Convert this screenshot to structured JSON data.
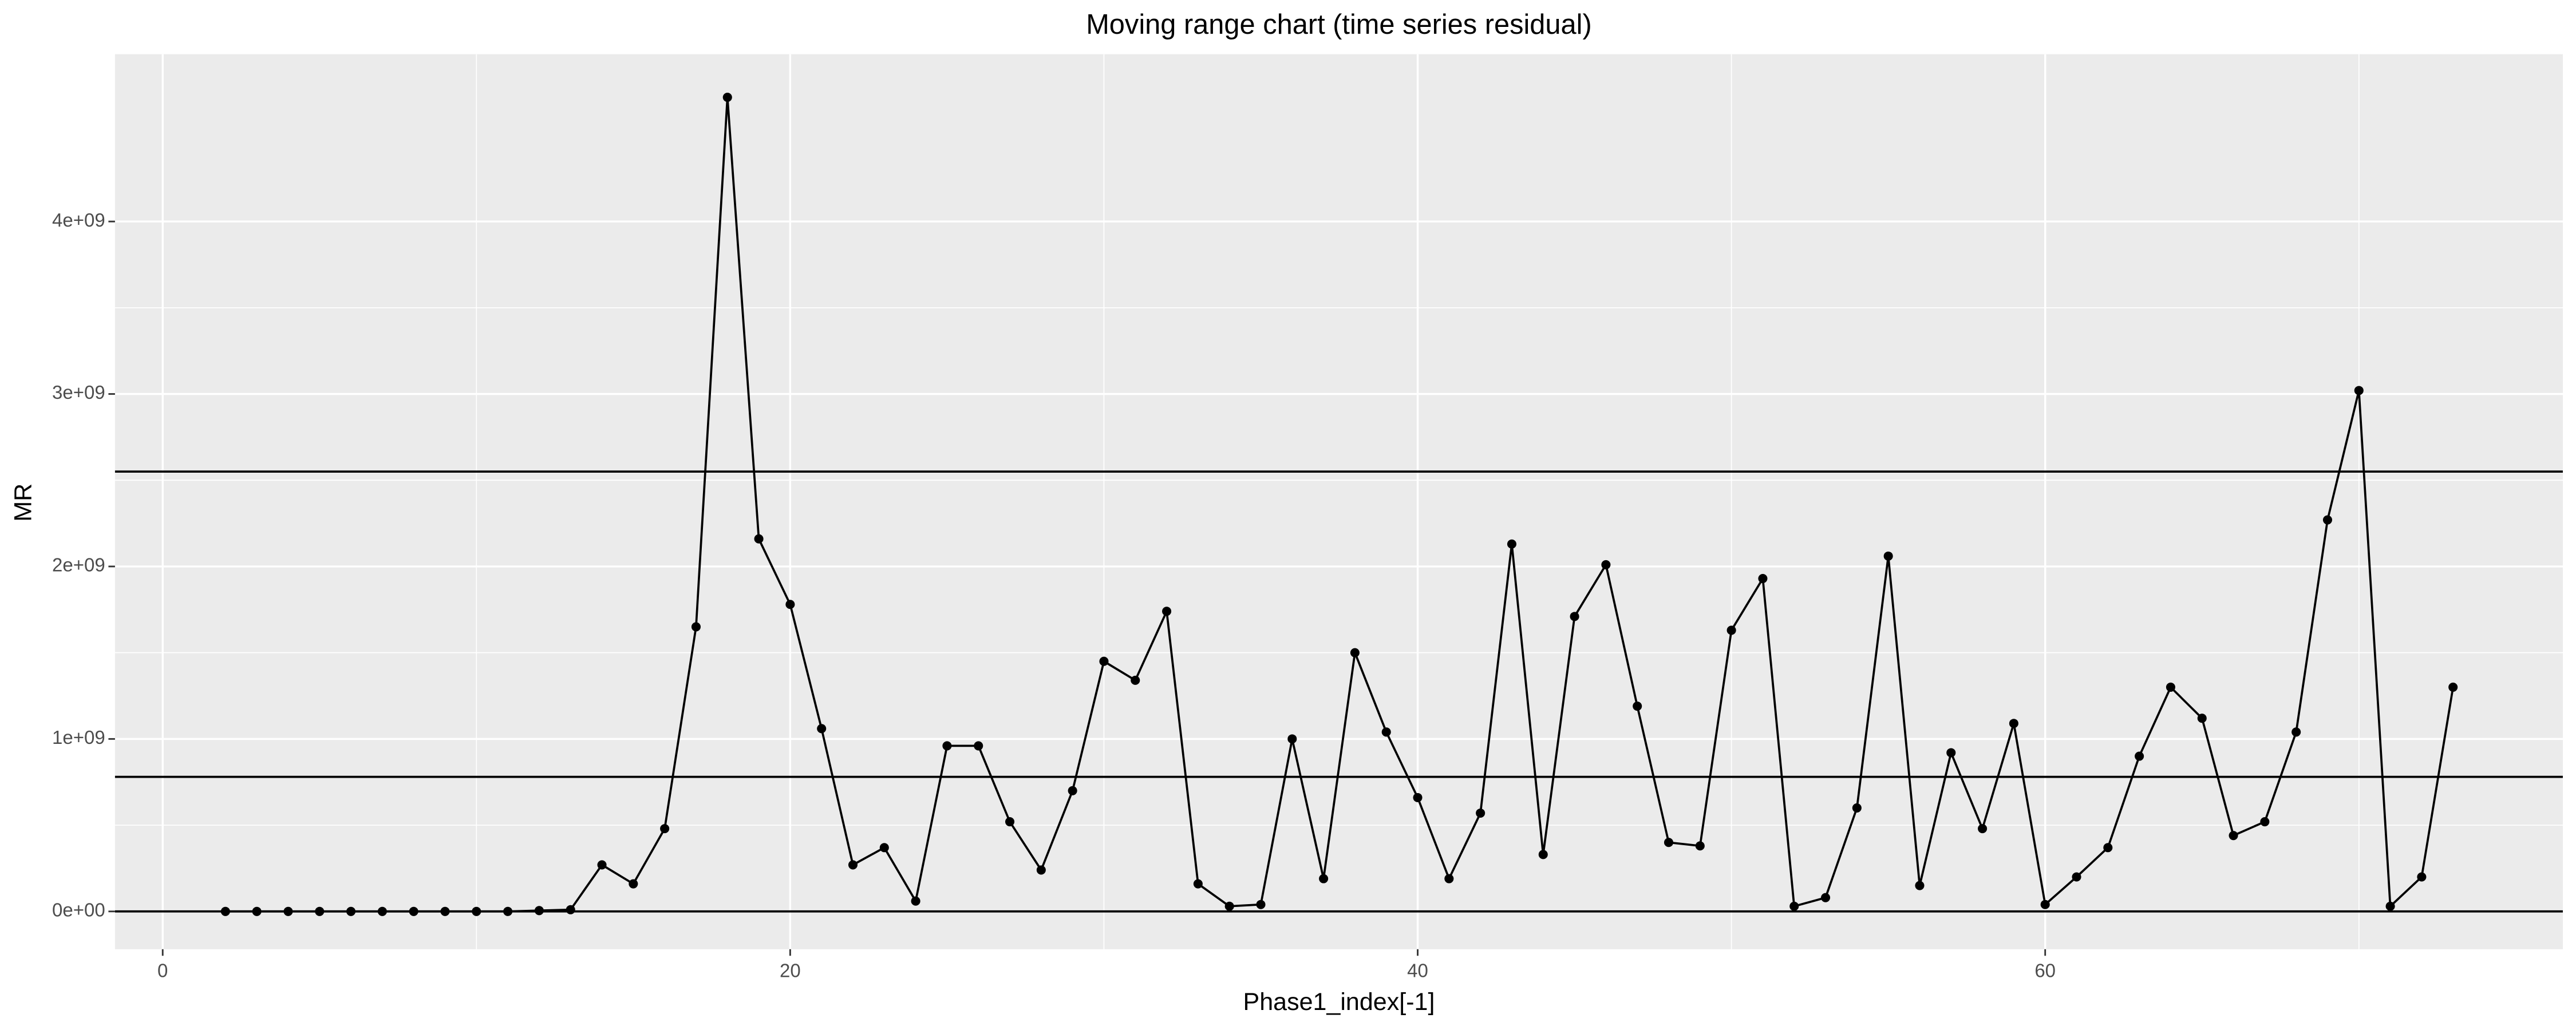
{
  "chart_data": {
    "type": "line",
    "title": "Moving range chart (time series residual)",
    "x_label": "Phase1_index[-1]",
    "y_label": "MR",
    "x": [
      2,
      3,
      4,
      5,
      6,
      7,
      8,
      9,
      10,
      11,
      12,
      13,
      14,
      15,
      16,
      17,
      18,
      19,
      20,
      21,
      22,
      23,
      24,
      25,
      26,
      27,
      28,
      29,
      30,
      31,
      32,
      33,
      34,
      35,
      36,
      37,
      38,
      39,
      40,
      41,
      42,
      43,
      44,
      45,
      46,
      47,
      48,
      49,
      50,
      51,
      52,
      53,
      54,
      55,
      56,
      57,
      58,
      59,
      60,
      61,
      62,
      63,
      64,
      65,
      66,
      67,
      68,
      69,
      70,
      71,
      72,
      73
    ],
    "series": [
      {
        "name": "MR",
        "color": "#000000",
        "values": [
          0,
          0,
          0,
          0,
          0,
          0,
          0,
          0,
          0,
          0,
          5000000,
          10000000,
          270000000,
          160000000,
          480000000,
          1650000000,
          4720000000,
          2160000000,
          1780000000,
          1060000000,
          270000000,
          370000000,
          60000000,
          960000000,
          960000000,
          520000000,
          240000000,
          700000000,
          1450000000,
          1340000000,
          1740000000,
          160000000,
          30000000,
          40000000,
          1000000000,
          190000000,
          1500000000,
          1040000000,
          660000000,
          190000000,
          570000000,
          2130000000,
          330000000,
          1710000000,
          2010000000,
          1190000000,
          400000000,
          380000000,
          1630000000,
          1930000000,
          30000000,
          80000000,
          600000000,
          2060000000,
          150000000,
          920000000,
          480000000,
          1090000000,
          40000000,
          200000000,
          370000000,
          900000000,
          1300000000,
          1120000000,
          440000000,
          520000000,
          1040000000,
          2270000000,
          3020000000,
          30000000,
          200000000,
          1300000000
        ]
      }
    ],
    "hlines": [
      0,
      780000000,
      2550000000
    ],
    "xlim": [
      -1.52,
      76.5
    ],
    "ylim": [
      -219000000,
      4970000000
    ],
    "xticks": [
      0,
      20,
      40,
      60
    ],
    "yticks": [
      {
        "value": 0,
        "label": "0e+00"
      },
      {
        "value": 1000000000,
        "label": "1e+09"
      },
      {
        "value": 2000000000,
        "label": "2e+09"
      },
      {
        "value": 3000000000,
        "label": "3e+09"
      },
      {
        "value": 4000000000,
        "label": "4e+09"
      }
    ],
    "grid": true
  }
}
